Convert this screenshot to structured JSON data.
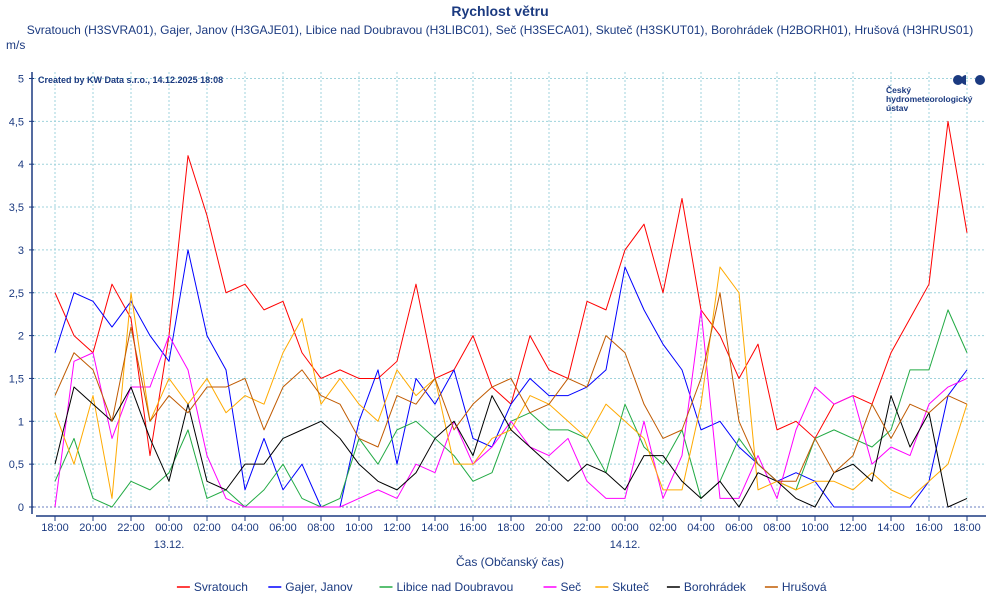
{
  "chart_data": {
    "type": "line",
    "title": "Rychlost větru",
    "subtitle": "Svratouch (H3SVRA01), Gajer, Janov (H3GAJE01), Libice nad Doubravou (H3LIBC01), Seč (H3SECA01), Skuteč (H3SKUT01), Borohrádek (H2BORH01), Hrušová (H3HRUS01)",
    "ylabel": "m/s",
    "xlabel": "Čas (Občanský čas)",
    "credit": "Created by KW Data s.r.o., 14.12.2025 18:08",
    "logo": {
      "line1": "Český",
      "line2": "hydrometeorologický",
      "line3": "ústav"
    },
    "ylim": [
      0,
      5
    ],
    "y_ticks": [
      "0",
      "0,5",
      "1",
      "1,5",
      "2",
      "2,5",
      "3",
      "3,5",
      "4",
      "4,5",
      "5"
    ],
    "x_range_hours": [
      0,
      48
    ],
    "x_start": "12.12.2025 18:00",
    "x_step_hours": 1,
    "x_ticks": [
      "18:00",
      "20:00",
      "22:00",
      "00:00",
      "02:00",
      "04:00",
      "06:00",
      "08:00",
      "10:00",
      "12:00",
      "14:00",
      "16:00",
      "18:00",
      "20:00",
      "22:00",
      "00:00",
      "02:00",
      "04:00",
      "06:00",
      "08:00",
      "10:00",
      "12:00",
      "14:00",
      "16:00",
      "18:00"
    ],
    "date_labels": [
      {
        "tick_index": 3,
        "label": "13.12."
      },
      {
        "tick_index": 15,
        "label": "14.12."
      }
    ],
    "grid": true,
    "legend_position": "bottom",
    "series": [
      {
        "name": "Svratouch",
        "color": "#ff0000",
        "values": [
          2.5,
          2.0,
          1.8,
          2.6,
          2.2,
          0.6,
          2.0,
          4.1,
          3.4,
          2.5,
          2.6,
          2.3,
          2.4,
          1.8,
          1.5,
          1.6,
          1.5,
          1.5,
          1.7,
          2.6,
          1.5,
          1.6,
          2.0,
          1.4,
          1.2,
          2.0,
          1.6,
          1.5,
          2.4,
          2.3,
          3.0,
          3.3,
          2.5,
          3.6,
          2.3,
          2.0,
          1.5,
          1.9,
          0.9,
          1.0,
          0.8,
          1.2,
          1.3,
          1.2,
          1.8,
          2.2,
          2.6,
          4.5,
          3.2
        ]
      },
      {
        "name": "Gajer, Janov",
        "color": "#0000ff",
        "values": [
          1.8,
          2.5,
          2.4,
          2.1,
          2.4,
          2.0,
          1.7,
          3.0,
          2.0,
          1.6,
          0.2,
          0.8,
          0.2,
          0.5,
          0.0,
          0.0,
          1.0,
          1.6,
          0.5,
          1.5,
          1.2,
          1.6,
          0.8,
          0.7,
          1.2,
          1.5,
          1.3,
          1.3,
          1.4,
          1.6,
          2.8,
          2.3,
          1.9,
          1.6,
          0.9,
          1.0,
          0.7,
          0.5,
          0.3,
          0.4,
          0.3,
          0.0,
          0.0,
          0.0,
          0.0,
          0.0,
          0.3,
          1.3,
          1.6
        ]
      },
      {
        "name": "Libice nad Doubravou",
        "color": "#22aa44",
        "values": [
          0.3,
          0.8,
          0.1,
          0.0,
          0.3,
          0.2,
          0.4,
          0.9,
          0.1,
          0.2,
          0.0,
          0.2,
          0.5,
          0.1,
          0.0,
          0.1,
          0.8,
          0.5,
          0.9,
          1.0,
          0.8,
          0.6,
          0.3,
          0.4,
          1.0,
          1.1,
          0.9,
          0.9,
          0.8,
          0.4,
          1.2,
          0.7,
          0.5,
          0.9,
          0.1,
          0.3,
          0.8,
          0.5,
          0.3,
          0.2,
          0.8,
          0.9,
          0.8,
          0.7,
          0.9,
          1.6,
          1.6,
          2.3,
          1.8
        ]
      },
      {
        "name": "Seč",
        "color": "#ff00ff",
        "values": [
          0.0,
          1.7,
          1.8,
          0.8,
          1.4,
          1.4,
          2.0,
          1.6,
          0.6,
          0.1,
          0.0,
          0.0,
          0.0,
          0.0,
          0.0,
          0.0,
          0.1,
          0.2,
          0.1,
          0.5,
          0.4,
          1.0,
          0.5,
          0.7,
          1.0,
          0.7,
          0.6,
          0.8,
          0.3,
          0.1,
          0.1,
          1.0,
          0.1,
          0.6,
          2.3,
          0.1,
          0.1,
          0.6,
          0.1,
          0.9,
          1.4,
          1.2,
          1.3,
          0.5,
          0.7,
          0.6,
          1.2,
          1.4,
          1.5
        ]
      },
      {
        "name": "Skuteč",
        "color": "#ffaa00",
        "values": [
          1.1,
          0.5,
          1.3,
          0.1,
          2.5,
          1.0,
          1.5,
          1.2,
          1.5,
          1.1,
          1.3,
          1.2,
          1.8,
          2.2,
          1.2,
          1.5,
          1.2,
          1.0,
          1.6,
          1.3,
          1.5,
          0.5,
          0.5,
          0.8,
          0.9,
          1.3,
          1.2,
          1.0,
          0.8,
          1.2,
          1.0,
          0.8,
          0.2,
          0.2,
          1.2,
          2.8,
          2.5,
          0.2,
          0.3,
          0.2,
          0.3,
          0.3,
          0.2,
          0.4,
          0.2,
          0.1,
          0.3,
          0.5,
          1.2
        ]
      },
      {
        "name": "Borohrádek",
        "color": "#000000",
        "values": [
          0.5,
          1.4,
          1.2,
          1.0,
          1.4,
          0.8,
          0.3,
          1.2,
          0.3,
          0.2,
          0.5,
          0.5,
          0.8,
          0.9,
          1.0,
          0.8,
          0.5,
          0.3,
          0.2,
          0.4,
          0.8,
          1.0,
          0.6,
          1.3,
          0.9,
          0.7,
          0.5,
          0.3,
          0.5,
          0.4,
          0.2,
          0.6,
          0.6,
          0.3,
          0.1,
          0.3,
          0.0,
          0.4,
          0.3,
          0.1,
          0.0,
          0.4,
          0.5,
          0.3,
          1.3,
          0.7,
          1.1,
          0.0,
          0.1
        ]
      },
      {
        "name": "Hrušová",
        "color": "#c05a00",
        "values": [
          1.3,
          1.8,
          1.6,
          1.0,
          2.1,
          1.0,
          1.3,
          1.1,
          1.4,
          1.4,
          1.5,
          0.9,
          1.4,
          1.6,
          1.3,
          1.2,
          0.8,
          0.7,
          1.3,
          1.2,
          1.5,
          0.9,
          1.2,
          1.4,
          1.5,
          1.1,
          1.2,
          1.5,
          1.4,
          2.0,
          1.8,
          1.2,
          0.8,
          0.9,
          1.5,
          2.5,
          1.0,
          0.5,
          0.3,
          0.3,
          0.8,
          0.4,
          0.6,
          1.2,
          0.8,
          1.2,
          1.1,
          1.3,
          1.2
        ]
      }
    ]
  }
}
